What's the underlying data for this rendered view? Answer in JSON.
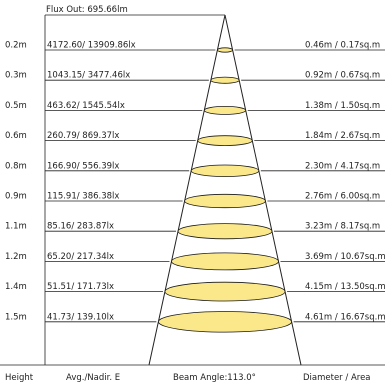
{
  "flux_out": "Flux Out: 695.66lm",
  "rows": [
    {
      "height": "0.2m",
      "illuminance": "4172.60/ 13909.86lx",
      "diameter_area": "0.46m / 0.17sq.m"
    },
    {
      "height": "0.3m",
      "illuminance": "1043.15/ 3477.46lx",
      "diameter_area": "0.92m / 0.67sq.m"
    },
    {
      "height": "0.5m",
      "illuminance": "463.62/ 1545.54lx",
      "diameter_area": "1.38m / 1.50sq.m"
    },
    {
      "height": "0.6m",
      "illuminance": "260.79/ 869.37lx",
      "diameter_area": "1.84m / 2.67sq.m"
    },
    {
      "height": "0.8m",
      "illuminance": "166.90/ 556.39lx",
      "diameter_area": "2.30m / 4.17sq.m"
    },
    {
      "height": "0.9m",
      "illuminance": "115.91/ 386.38lx",
      "diameter_area": "2.76m / 6.00sq.m"
    },
    {
      "height": "1.1m",
      "illuminance": "85.16/ 283.87lx",
      "diameter_area": "3.23m / 8.17sq.m"
    },
    {
      "height": "1.2m",
      "illuminance": "65.20/ 217.34lx",
      "diameter_area": "3.69m / 10.67sq.m"
    },
    {
      "height": "1.4m",
      "illuminance": "51.51/ 171.73lx",
      "diameter_area": "4.15m / 13.50sq.m"
    },
    {
      "height": "1.5m",
      "illuminance": "41.73/ 139.10lx",
      "diameter_area": "4.61m / 16.67sq.m"
    }
  ],
  "footer": {
    "height_label": "Height",
    "illuminance_label": "Avg./Nadir. E",
    "beam_angle_label": "Beam Angle:113.0°",
    "diameter_label": "Diameter / Area"
  },
  "colors": {
    "ellipse_fill": "#fbe88a",
    "ellipse_stroke": "#1a1a1a",
    "line": "#222222"
  }
}
